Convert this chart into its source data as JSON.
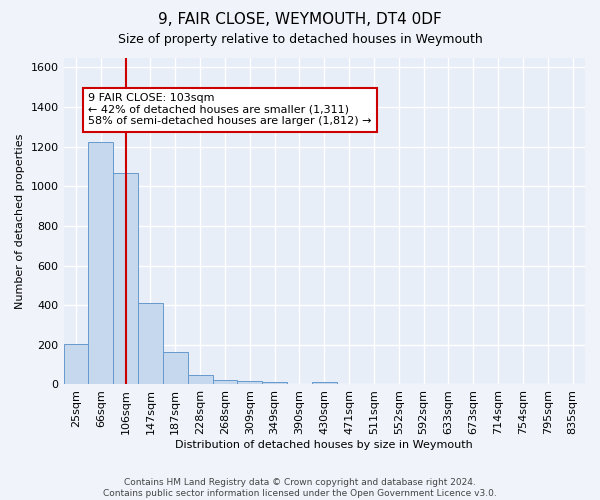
{
  "title": "9, FAIR CLOSE, WEYMOUTH, DT4 0DF",
  "subtitle": "Size of property relative to detached houses in Weymouth",
  "xlabel": "Distribution of detached houses by size in Weymouth",
  "ylabel": "Number of detached properties",
  "bar_labels": [
    "25sqm",
    "66sqm",
    "106sqm",
    "147sqm",
    "187sqm",
    "228sqm",
    "268sqm",
    "309sqm",
    "349sqm",
    "390sqm",
    "430sqm",
    "471sqm",
    "511sqm",
    "552sqm",
    "592sqm",
    "633sqm",
    "673sqm",
    "714sqm",
    "754sqm",
    "795sqm",
    "835sqm"
  ],
  "bar_values": [
    205,
    1225,
    1065,
    410,
    163,
    47,
    25,
    18,
    14,
    0,
    14,
    0,
    0,
    0,
    0,
    0,
    0,
    0,
    0,
    0,
    0
  ],
  "bar_color": "#c5d8ee",
  "bar_edge_color": "#6699cc",
  "annotation_text": "9 FAIR CLOSE: 103sqm\n← 42% of detached houses are smaller (1,311)\n58% of semi-detached houses are larger (1,812) →",
  "red_line_x": 2,
  "ylim": [
    0,
    1650
  ],
  "yticks": [
    0,
    200,
    400,
    600,
    800,
    1000,
    1200,
    1400,
    1600
  ],
  "footer": "Contains HM Land Registry data © Crown copyright and database right 2024.\nContains public sector information licensed under the Open Government Licence v3.0.",
  "background_color": "#f0f4fa",
  "plot_bg_color": "#e8eef8",
  "grid_color": "#ffffff",
  "annotation_box_color": "#ffffff",
  "annotation_box_edge": "#cc0000",
  "red_line_color": "#cc0000",
  "title_fontsize": 11,
  "subtitle_fontsize": 9,
  "ylabel_fontsize": 8,
  "xlabel_fontsize": 8,
  "tick_fontsize": 8,
  "annotation_fontsize": 8,
  "footer_fontsize": 6.5
}
